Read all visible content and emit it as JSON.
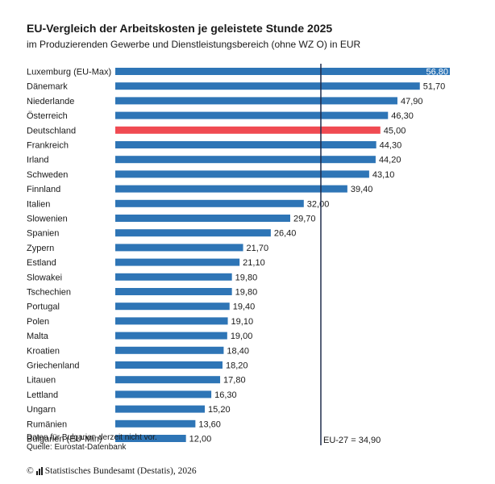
{
  "header": {
    "title": "EU-Vergleich der Arbeitskosten je geleistete Stunde 2025",
    "subtitle": "im Produzierenden Gewerbe und Dienstleistungsbereich (ohne WZ O) in EUR"
  },
  "footer": {
    "note": "Daten für Bulgarien derzeit nicht vor.",
    "source": "Quelle: Eurostat-Datenbank",
    "copyright": "Statistisches Bundesamt (Destatis), 2026",
    "copyright_symbol": "©"
  },
  "colors": {
    "default_bar": "#2e75b6",
    "highlight_bar": "#f04a52",
    "reference_line": "#1f2d4d"
  },
  "chart_data": {
    "type": "bar",
    "orientation": "horizontal",
    "title": "EU-Vergleich der Arbeitskosten je geleistete Stunde 2025",
    "subtitle": "im Produzierenden Gewerbe und Dienstleistungsbereich (ohne WZ O) in EUR",
    "categories": [
      "Luxemburg (EU-Max)",
      "Dänemark",
      "Niederlande",
      "Österreich",
      "Deutschland",
      "Frankreich",
      "Irland",
      "Schweden",
      "Finnland",
      "Italien",
      "Slowenien",
      "Spanien",
      "Zypern",
      "Estland",
      "Slowakei",
      "Tschechien",
      "Portugal",
      "Polen",
      "Malta",
      "Kroatien",
      "Griechenland",
      "Litauen",
      "Lettland",
      "Ungarn",
      "Rumänien",
      "Bulgarien (EU-Min)"
    ],
    "values": [
      56.8,
      51.7,
      47.9,
      46.3,
      45.0,
      44.3,
      44.2,
      43.1,
      39.4,
      32.0,
      29.7,
      26.4,
      21.7,
      21.1,
      19.8,
      19.8,
      19.4,
      19.1,
      19.0,
      18.4,
      18.2,
      17.8,
      16.3,
      15.2,
      13.6,
      12.0
    ],
    "value_labels": [
      "56,80",
      "51,70",
      "47,90",
      "46,30",
      "45,00",
      "44,30",
      "44,20",
      "43,10",
      "39,40",
      "32,00",
      "29,70",
      "26,40",
      "21,70",
      "21,10",
      "19,80",
      "19,80",
      "19,40",
      "19,10",
      "19,00",
      "18,40",
      "18,20",
      "17,80",
      "16,30",
      "15,20",
      "13,60",
      "12,00"
    ],
    "highlight": "Deutschland",
    "reference_line": {
      "value": 34.9,
      "label": "EU-27 = 34,90"
    },
    "xlim": [
      0,
      56.8
    ],
    "grid": false,
    "legend": "none"
  }
}
